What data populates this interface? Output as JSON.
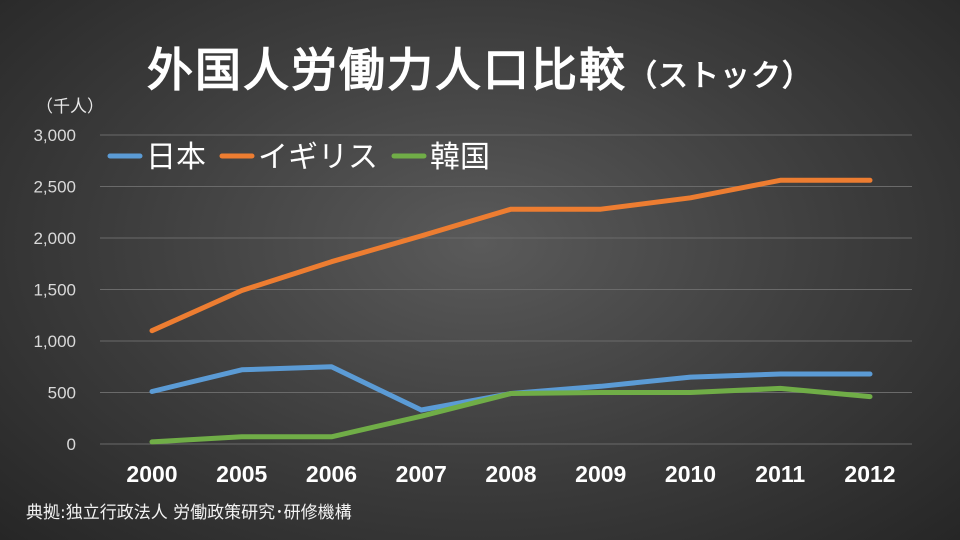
{
  "title": "外国人労働力人口比較",
  "title_suffix": "（ストック）",
  "unit_label": "（千人）",
  "source": "典拠:独立行政法人 労働政策研究･研修機構",
  "chart_data": {
    "type": "line",
    "categories": [
      "2000",
      "2005",
      "2006",
      "2007",
      "2008",
      "2009",
      "2010",
      "2011",
      "2012"
    ],
    "ylim": [
      0,
      3000
    ],
    "yticks": [
      0,
      500,
      1000,
      1500,
      2000,
      2500,
      3000
    ],
    "ytick_labels": [
      "0",
      "500",
      "1,000",
      "1,500",
      "2,000",
      "2,500",
      "3,000"
    ],
    "grid": true,
    "legend_position": "top-left",
    "series": [
      {
        "name": "日本",
        "color": "#5b9bd5",
        "values": [
          510,
          720,
          750,
          330,
          490,
          560,
          650,
          680,
          680
        ]
      },
      {
        "name": "イギリス",
        "color": "#ed7d31",
        "values": [
          1100,
          1490,
          1770,
          2020,
          2280,
          2280,
          2390,
          2560,
          2560
        ]
      },
      {
        "name": "韓国",
        "color": "#70ad47",
        "values": [
          20,
          70,
          70,
          270,
          490,
          500,
          500,
          540,
          460
        ]
      }
    ]
  }
}
